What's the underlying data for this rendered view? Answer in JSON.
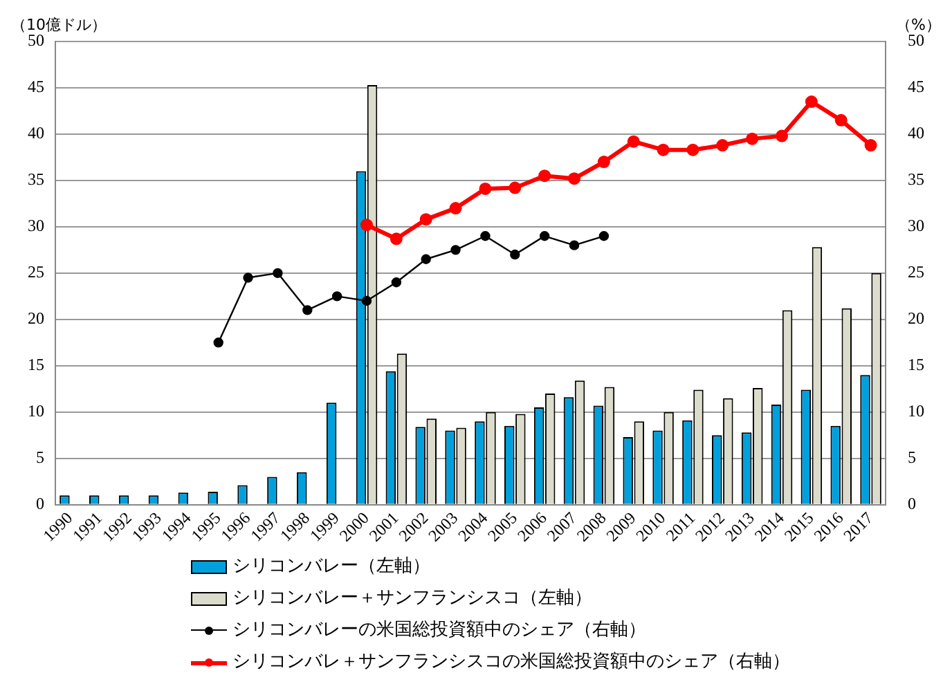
{
  "chart_data": {
    "type": "bar",
    "xlabel": null,
    "ylabel": "（10億ドル）",
    "y2label": "（%）",
    "categories": [
      "1990",
      "1991",
      "1992",
      "1993",
      "1994",
      "1995",
      "1996",
      "1997",
      "1998",
      "1999",
      "2000",
      "2001",
      "2002",
      "2003",
      "2004",
      "2005",
      "2006",
      "2007",
      "2008",
      "2009",
      "2010",
      "2011",
      "2012",
      "2013",
      "2014",
      "2015",
      "2016",
      "2017"
    ],
    "series": [
      {
        "name": "シリコンバレー（左軸）",
        "color": "#00a0dc",
        "values": [
          1,
          1,
          1,
          1,
          1.3,
          1.4,
          2.1,
          3,
          3.5,
          11,
          36,
          14.4,
          8.4,
          8,
          9,
          8.5,
          10.5,
          11.6,
          10.7,
          7.3,
          8,
          9.1,
          7.5,
          7.8,
          10.8,
          12.4,
          8.5,
          14
        ]
      },
      {
        "name": "シリコンバレー＋サンフランシスコ（左軸）",
        "color": "#dcdccc",
        "values": [
          null,
          null,
          null,
          null,
          null,
          null,
          null,
          null,
          null,
          null,
          45.3,
          16.3,
          9.3,
          8.3,
          10,
          9.8,
          12,
          13.4,
          12.7,
          9,
          10,
          12.4,
          11.5,
          12.6,
          21,
          27.8,
          21.2,
          25
        ]
      },
      {
        "name": "シリコンバレーの米国総投資額中のシェア（右軸）",
        "type": "line",
        "axis": "y2",
        "color": "#000000",
        "marker": "circle",
        "values": [
          null,
          null,
          null,
          null,
          null,
          17.5,
          24.5,
          25,
          21,
          22.5,
          22,
          24,
          26.5,
          27.5,
          29,
          27,
          29,
          28,
          29,
          null,
          null,
          null,
          null,
          null,
          null,
          null,
          null,
          null
        ]
      },
      {
        "name": "シリコンバレ＋サンフランシスコの米国総投資額中のシェア（右軸）",
        "type": "line",
        "axis": "y2",
        "color": "#ff0000",
        "marker": "circle",
        "values": [
          null,
          null,
          null,
          null,
          null,
          null,
          null,
          null,
          null,
          null,
          30.2,
          28.7,
          30.8,
          32,
          34.1,
          34.2,
          35.5,
          35.2,
          37,
          39.2,
          38.3,
          38.3,
          38.8,
          39.5,
          39.8,
          43.5,
          41.5,
          38.8
        ]
      }
    ],
    "ylim": [
      0,
      50
    ],
    "yticks": [
      0,
      5,
      10,
      15,
      20,
      25,
      30,
      35,
      40,
      45,
      50
    ],
    "y2lim": [
      0,
      50
    ],
    "y2ticks": [
      0,
      5,
      10,
      15,
      20,
      25,
      30,
      35,
      40,
      45,
      50
    ],
    "grid": "y",
    "legend": "bottom"
  }
}
